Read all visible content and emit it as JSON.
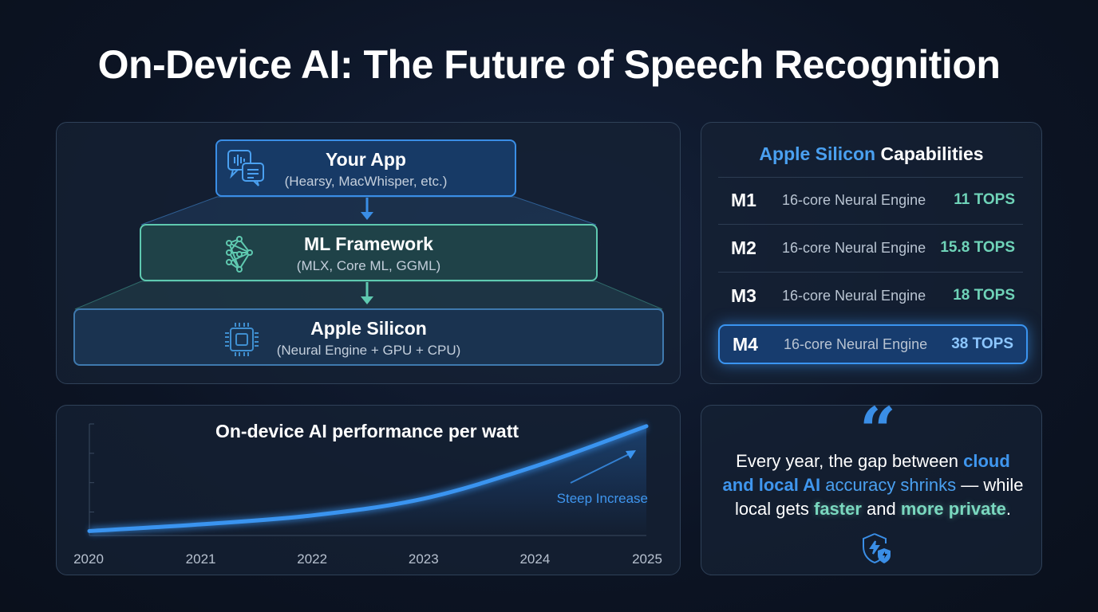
{
  "title": "On-Device AI: The Future of Speech Recognition",
  "stack": {
    "layers": [
      {
        "title": "Your App",
        "subtitle": "(Hearsy, MacWhisper, etc.)",
        "icon": "chat-waveform-icon",
        "color": "#3a8ee6"
      },
      {
        "title": "ML Framework",
        "subtitle": "(MLX, Core ML, GGML)",
        "icon": "neural-network-icon",
        "color": "#5fc9b0"
      },
      {
        "title": "Apple Silicon",
        "subtitle": "(Neural Engine + GPU + CPU)",
        "icon": "chip-icon",
        "color": "#3f79ae"
      }
    ]
  },
  "capabilities": {
    "title_highlight": "Apple Silicon",
    "title_rest": " Capabilities",
    "rows": [
      {
        "chip": "M1",
        "desc": "16-core Neural Engine",
        "tops": "11 TOPS"
      },
      {
        "chip": "M2",
        "desc": "16-core Neural Engine",
        "tops": "15.8 TOPS"
      },
      {
        "chip": "M3",
        "desc": "16-core Neural Engine",
        "tops": "18 TOPS"
      },
      {
        "chip": "M4",
        "desc": "16-core Neural Engine",
        "tops": "38 TOPS",
        "highlighted": true
      }
    ]
  },
  "chart_data": {
    "type": "line",
    "title": "On-device AI performance per watt",
    "categories": [
      "2020",
      "2021",
      "2022",
      "2023",
      "2024",
      "2025"
    ],
    "values": [
      4,
      10,
      18,
      33,
      62,
      98
    ],
    "ylim": [
      0,
      100
    ],
    "grid": false,
    "annotation": "Steep Increase",
    "color": "#3a94f0"
  },
  "quote": {
    "icon": "quote-icon",
    "p1": "Every year, the gap between ",
    "h1": "cloud and local AI",
    "h2": " accuracy shrinks",
    "p2": " — while local gets ",
    "g1": "faster",
    "p3": " and ",
    "g2": "more private",
    "p4": ".",
    "footer_icon": "shield-lightning-icon"
  }
}
